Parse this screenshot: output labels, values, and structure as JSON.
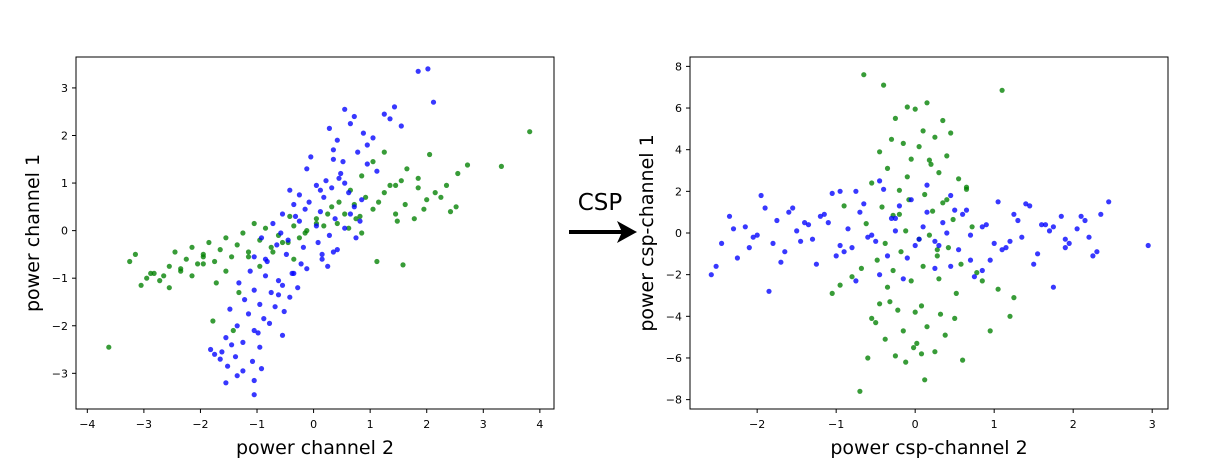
{
  "transform": {
    "label": "CSP"
  },
  "chart_data": [
    {
      "type": "scatter",
      "xlabel": "power channel 2",
      "ylabel": "power channel 1",
      "xlim": [
        -4.2,
        4.25
      ],
      "ylim": [
        -3.75,
        3.65
      ],
      "xticks": [
        -4,
        -3,
        -2,
        -1,
        0,
        1,
        2,
        3,
        4
      ],
      "yticks": [
        -3,
        -2,
        -1,
        0,
        1,
        2,
        3
      ],
      "grid": false,
      "colors": {
        "blue": "#0000ff",
        "green": "#008000"
      },
      "blue_points": {
        "x": [
          1.85,
          2.02,
          2.12,
          1.25,
          1.43,
          0.55,
          0.65,
          0.72,
          0.28,
          0.42,
          0.88,
          0.95,
          1.05,
          1.35,
          1.55,
          -0.05,
          -0.12,
          0.35,
          0.52,
          0.78,
          0.95,
          1.12,
          0.22,
          0.48,
          0.05,
          -0.25,
          -0.42,
          0.18,
          0.32,
          0.62,
          0.85,
          -0.15,
          -0.35,
          -0.55,
          0.12,
          0.38,
          0.72,
          -0.72,
          -0.58,
          -0.25,
          0.05,
          0.28,
          0.55,
          -0.92,
          -0.65,
          -0.45,
          -0.18,
          0.08,
          0.42,
          0.75,
          -1.05,
          -0.82,
          -0.48,
          -0.22,
          0.15,
          0.35,
          -1.12,
          -0.85,
          -0.62,
          -0.38,
          -0.12,
          0.25,
          -1.32,
          -1.05,
          -0.75,
          -0.55,
          -0.28,
          -1.22,
          -0.95,
          -0.68,
          -0.42,
          -1.48,
          -1.15,
          -0.88,
          -0.52,
          -1.35,
          -1.05,
          -0.78,
          -1.55,
          -1.25,
          -0.95,
          -0.55,
          -1.62,
          -1.38,
          -1.08,
          -1.82,
          -1.52,
          -1.25,
          -0.92,
          -1.65,
          -1.35,
          -1.05,
          -1.55,
          -1.05,
          -1.75,
          -1.45,
          -0.98,
          -0.32,
          0.55,
          -0.08,
          0.15,
          0.82,
          0.35,
          -0.62,
          0.12,
          -0.35,
          0.65,
          0.45,
          -0.85
        ],
        "y": [
          3.35,
          3.4,
          2.7,
          2.45,
          2.6,
          2.55,
          2.25,
          2.4,
          2.15,
          1.9,
          2.05,
          1.8,
          1.95,
          2.35,
          2.2,
          1.55,
          1.3,
          1.7,
          1.45,
          1.65,
          1.4,
          1.25,
          1.05,
          1.2,
          0.95,
          0.75,
          0.85,
          0.7,
          0.9,
          0.8,
          0.65,
          0.45,
          0.55,
          0.35,
          0.4,
          0.25,
          0.5,
          0.15,
          -0.05,
          0.2,
          0.1,
          -0.1,
          0.05,
          -0.15,
          -0.3,
          -0.2,
          -0.35,
          -0.25,
          -0.4,
          -0.15,
          -0.55,
          -0.65,
          -0.5,
          -0.7,
          -0.6,
          -0.45,
          -0.85,
          -0.95,
          -1.05,
          -0.9,
          -0.8,
          -0.75,
          -1.1,
          -1.25,
          -1.3,
          -1.15,
          -1.2,
          -1.45,
          -1.55,
          -1.6,
          -1.4,
          -1.65,
          -1.75,
          -1.85,
          -1.7,
          -2.0,
          -2.1,
          -1.95,
          -2.25,
          -2.35,
          -2.45,
          -2.2,
          -2.55,
          -2.65,
          -2.75,
          -2.5,
          -2.85,
          -2.95,
          -2.9,
          -2.7,
          -3.05,
          -3.15,
          -3.2,
          -3.45,
          -2.6,
          -2.4,
          -2.15,
          0.3,
          1.0,
          0.6,
          -0.5,
          0.2,
          1.5,
          -1.35,
          0.85,
          -0.9,
          0.35,
          1.1,
          -0.6
        ]
      },
      "green_points": {
        "x": [
          3.82,
          3.32,
          2.72,
          2.55,
          2.35,
          2.15,
          2.0,
          1.85,
          1.62,
          1.45,
          1.78,
          1.95,
          2.25,
          1.55,
          1.35,
          1.15,
          1.05,
          0.92,
          0.82,
          0.72,
          1.25,
          1.48,
          0.55,
          0.42,
          0.32,
          0.18,
          0.05,
          0.62,
          0.85,
          -0.12,
          -0.25,
          -0.35,
          -0.45,
          -0.62,
          -0.75,
          -0.85,
          -0.95,
          -1.05,
          -1.15,
          -1.25,
          -1.35,
          -1.45,
          -1.55,
          -1.65,
          -1.75,
          -1.85,
          -1.95,
          -2.05,
          -2.15,
          -2.25,
          -2.35,
          -2.45,
          -2.55,
          -2.65,
          -2.82,
          -2.95,
          -3.15,
          -3.25,
          -3.05,
          -2.72,
          -2.55,
          -2.35,
          -2.15,
          -1.95,
          -1.72,
          -1.55,
          -1.32,
          -1.15,
          -0.95,
          -0.72,
          -0.55,
          -0.35,
          -0.15,
          0.05,
          0.25,
          0.45,
          0.65,
          0.85,
          1.05,
          1.25,
          1.45,
          1.65,
          1.85,
          2.05,
          2.52,
          -3.62,
          -1.78,
          -1.42,
          -0.42,
          0.75,
          1.12,
          1.58,
          2.42,
          -2.88,
          -1.95
        ],
        "y": [
          2.08,
          1.35,
          1.38,
          1.2,
          0.95,
          0.8,
          0.65,
          0.9,
          0.55,
          0.35,
          0.25,
          0.45,
          0.7,
          1.05,
          0.95,
          0.6,
          0.45,
          0.7,
          0.3,
          0.55,
          0.8,
          0.2,
          0.35,
          0.15,
          0.5,
          0.1,
          0.25,
          0.05,
          -0.05,
          0.0,
          -0.15,
          0.1,
          -0.25,
          -0.1,
          -0.35,
          0.05,
          -0.2,
          0.15,
          -0.45,
          -0.05,
          -0.3,
          -0.55,
          -0.15,
          -0.4,
          -0.65,
          -0.25,
          -0.5,
          -0.7,
          -0.35,
          -0.6,
          -0.85,
          -0.45,
          -0.75,
          -0.95,
          -0.9,
          -1.0,
          -0.5,
          -0.65,
          -1.15,
          -1.05,
          -1.2,
          -0.8,
          -0.95,
          -0.7,
          -1.1,
          -0.85,
          -1.3,
          -0.55,
          -0.75,
          -0.45,
          -0.25,
          -0.6,
          -0.05,
          0.15,
          0.35,
          0.6,
          0.85,
          1.15,
          1.45,
          1.65,
          0.95,
          1.3,
          1.1,
          1.6,
          0.5,
          -2.45,
          -1.9,
          -2.1,
          0.3,
          0.25,
          -0.65,
          -0.72,
          0.4,
          -0.9,
          -0.55
        ]
      }
    },
    {
      "type": "scatter",
      "xlabel": "power csp-channel 2",
      "ylabel": "power csp-channel 1",
      "xlim": [
        -2.85,
        3.2
      ],
      "ylim": [
        -8.45,
        8.45
      ],
      "xticks": [
        -2,
        -1,
        0,
        1,
        2,
        3
      ],
      "yticks": [
        -8,
        -6,
        -4,
        -2,
        0,
        2,
        4,
        6,
        8
      ],
      "grid": false,
      "colors": {
        "blue": "#0000ff",
        "green": "#008000"
      },
      "blue_points": {
        "x": [
          -2.58,
          -2.52,
          -2.45,
          -2.35,
          -2.25,
          -2.15,
          -2.05,
          -1.95,
          -1.85,
          -1.75,
          -1.65,
          -1.55,
          -1.45,
          -1.35,
          -1.25,
          -1.15,
          -1.05,
          -0.95,
          -0.85,
          -0.75,
          -0.65,
          -0.55,
          -0.45,
          -0.35,
          -0.25,
          -0.15,
          -0.05,
          0.05,
          0.15,
          0.25,
          0.35,
          0.45,
          0.55,
          0.65,
          0.75,
          0.85,
          0.95,
          1.05,
          1.15,
          1.25,
          1.35,
          1.45,
          1.55,
          1.65,
          1.75,
          1.85,
          1.95,
          2.05,
          2.15,
          2.25,
          2.35,
          2.45,
          2.95,
          -2.3,
          -2.1,
          -1.9,
          -1.7,
          -1.5,
          -1.3,
          -1.1,
          -0.9,
          -0.7,
          -0.5,
          -0.3,
          -0.1,
          0.1,
          0.3,
          0.5,
          0.7,
          0.9,
          1.1,
          1.3,
          1.5,
          1.7,
          1.9,
          2.1,
          2.3,
          -1.8,
          -1.2,
          -0.6,
          0.0,
          0.6,
          1.2,
          1.75,
          -2.0,
          -1.4,
          -0.8,
          -0.2,
          0.4,
          1.0,
          1.6,
          2.2,
          -0.95,
          -0.45,
          0.15,
          0.45,
          -0.25,
          0.25,
          -1.6,
          1.4,
          0.85,
          -0.75,
          1.9,
          -1.0,
          0.7,
          -0.4
        ],
        "y": [
          -2.0,
          -1.6,
          -0.5,
          0.8,
          -1.2,
          0.3,
          -0.2,
          1.8,
          -2.8,
          0.6,
          -0.9,
          1.2,
          -0.4,
          0.4,
          -1.5,
          0.9,
          1.9,
          -0.6,
          0.2,
          -2.3,
          1.4,
          -0.1,
          2.5,
          -1.1,
          0.7,
          -2.2,
          1.6,
          -0.3,
          2.3,
          -1.7,
          0.5,
          1.8,
          -0.8,
          1.1,
          -2.1,
          0.3,
          -1.3,
          1.5,
          -0.7,
          0.9,
          -0.2,
          1.3,
          -1.0,
          0.4,
          -2.6,
          0.8,
          -0.5,
          0.2,
          0.6,
          -1.1,
          0.9,
          1.5,
          -0.6,
          0.2,
          -0.7,
          1.2,
          -1.4,
          0.1,
          -0.3,
          0.5,
          -0.9,
          1.0,
          -0.4,
          0.7,
          -1.2,
          0.3,
          -0.6,
          1.1,
          -0.1,
          0.4,
          -0.8,
          0.6,
          -1.5,
          0.1,
          -0.3,
          0.8,
          -0.9,
          -0.5,
          0.8,
          -0.2,
          -0.6,
          0.9,
          -0.4,
          0.3,
          -0.1,
          0.5,
          -0.7,
          1.3,
          0.0,
          -0.5,
          0.4,
          -0.2,
          2.0,
          -2.0,
          1.0,
          -1.6,
          0.1,
          -0.4,
          1.0,
          1.4,
          -1.8,
          2.0,
          -0.7,
          -1.1,
          -1.3,
          2.1
        ]
      },
      "green_points": {
        "x": [
          -0.65,
          -0.4,
          1.1,
          -0.1,
          0.0,
          0.15,
          -0.25,
          0.35,
          0.45,
          -0.3,
          0.1,
          -0.15,
          0.25,
          0.05,
          -0.45,
          0.4,
          -0.05,
          0.2,
          -0.35,
          0.3,
          0.55,
          -0.55,
          0.65,
          -0.2,
          0.12,
          -0.08,
          0.35,
          -0.42,
          0.22,
          -0.28,
          0.48,
          -0.62,
          0.72,
          -0.12,
          0.18,
          0.05,
          -0.38,
          0.42,
          -0.18,
          0.28,
          -0.48,
          0.58,
          -0.68,
          0.78,
          -0.8,
          0.85,
          -0.95,
          1.05,
          -1.05,
          1.25,
          -0.32,
          0.08,
          -0.22,
          0.32,
          0.5,
          -0.5,
          0.15,
          -0.15,
          0.38,
          -0.38,
          0.02,
          -0.02,
          0.25,
          -0.25,
          0.6,
          -0.6,
          -0.7,
          0.95,
          0.12,
          -0.35,
          -0.55,
          0.0,
          0.3,
          -0.28,
          0.4,
          -0.1,
          0.18,
          -0.45,
          0.52,
          -0.2,
          0.1,
          -0.05,
          0.28,
          0.65,
          -0.9,
          1.2,
          -0.12,
          0.08
        ],
        "y": [
          7.6,
          7.1,
          6.85,
          6.05,
          5.95,
          6.25,
          5.5,
          5.4,
          4.8,
          4.5,
          4.9,
          4.3,
          4.6,
          4.15,
          3.9,
          3.7,
          3.55,
          3.3,
          3.1,
          2.9,
          2.6,
          2.4,
          2.2,
          2.05,
          1.85,
          1.6,
          1.45,
          1.25,
          1.05,
          0.85,
          0.65,
          0.45,
          0.3,
          0.1,
          -0.1,
          -0.3,
          -0.5,
          -0.7,
          -0.9,
          -1.1,
          -1.3,
          -1.5,
          -1.7,
          -1.9,
          -2.1,
          -2.3,
          -2.5,
          -2.7,
          -2.9,
          -3.1,
          -3.3,
          -3.5,
          -3.7,
          -3.9,
          -4.1,
          -4.3,
          -4.5,
          -4.7,
          -4.9,
          -5.1,
          -5.3,
          -5.5,
          -5.7,
          -5.9,
          -6.1,
          -6.0,
          -7.6,
          -4.7,
          -7.05,
          -2.6,
          -4.1,
          -3.8,
          -2.2,
          -1.8,
          1.6,
          2.7,
          3.5,
          -3.4,
          -2.9,
          0.9,
          -1.6,
          -2.3,
          -0.8,
          2.1,
          1.3,
          -4.0,
          -6.2,
          -5.8
        ]
      }
    }
  ]
}
